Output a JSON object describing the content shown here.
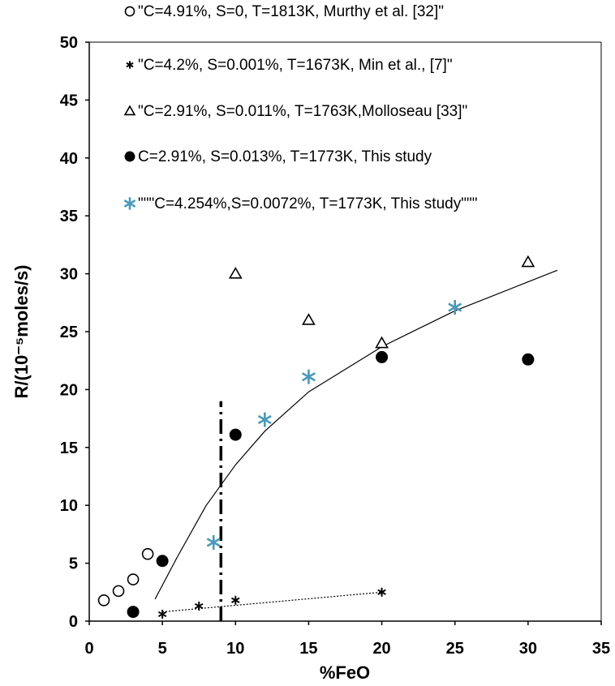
{
  "chart_data": {
    "type": "scatter",
    "title": "",
    "xlabel": "%FeO",
    "ylabel": "R/(10⁻⁵moles/s)",
    "xlim": [
      0,
      35
    ],
    "ylim": [
      0,
      50
    ],
    "xticks": [
      0,
      5,
      10,
      15,
      20,
      25,
      30,
      35
    ],
    "yticks": [
      0,
      5,
      10,
      15,
      20,
      25,
      30,
      35,
      40,
      45,
      50
    ],
    "grid": false,
    "legend_position": "top",
    "series": [
      {
        "name": "\"C=4.91%, S=0, T=1813K, Murthy et al. [32]\"",
        "marker": "open-circle",
        "color": "#000000",
        "points": [
          [
            1,
            1.8
          ],
          [
            2,
            2.6
          ],
          [
            3,
            3.6
          ],
          [
            4,
            5.8
          ]
        ]
      },
      {
        "name": "\"C=4.2%, S=0.001%, T=1673K, Min et al., [7]\"",
        "marker": "asterisk",
        "color": "#000000",
        "points": [
          [
            5,
            0.6
          ],
          [
            7.5,
            1.3
          ],
          [
            10,
            1.8
          ],
          [
            20,
            2.5
          ]
        ]
      },
      {
        "name": "\"C=2.91%, S=0.011%, T=1763K,Molloseau [33]\"",
        "marker": "open-triangle",
        "color": "#000000",
        "points": [
          [
            10,
            30
          ],
          [
            15,
            26
          ],
          [
            20,
            24
          ],
          [
            30,
            31
          ]
        ]
      },
      {
        "name": "C=2.91%, S=0.013%, T=1773K, This study",
        "marker": "filled-circle",
        "color": "#000000",
        "points": [
          [
            3,
            0.8
          ],
          [
            5,
            5.2
          ],
          [
            10,
            16.1
          ],
          [
            20,
            22.8
          ],
          [
            30,
            22.6
          ]
        ]
      },
      {
        "name": "\"\"\"C=4.254%,S=0.0072%, T=1773K, This study\"\"\"",
        "marker": "asterisk",
        "color": "#4a9ab8",
        "points": [
          [
            8.5,
            6.8
          ],
          [
            12,
            17.4
          ],
          [
            15,
            21.1
          ],
          [
            25,
            27.1
          ]
        ]
      }
    ],
    "trend_lines": [
      {
        "style": "solid",
        "color": "#000000",
        "points": [
          [
            4.5,
            1.9
          ],
          [
            6,
            5.5
          ],
          [
            8,
            10.0
          ],
          [
            10,
            13.5
          ],
          [
            12,
            16.4
          ],
          [
            15,
            19.8
          ],
          [
            20,
            23.7
          ],
          [
            25,
            26.8
          ],
          [
            30,
            29.3
          ],
          [
            32,
            30.3
          ]
        ]
      },
      {
        "style": "dotted",
        "color": "#000000",
        "points": [
          [
            5,
            0.8
          ],
          [
            20,
            2.5
          ]
        ]
      },
      {
        "style": "dash-dot",
        "color": "#000000",
        "points": [
          [
            9,
            0
          ],
          [
            9,
            19
          ]
        ]
      }
    ]
  }
}
